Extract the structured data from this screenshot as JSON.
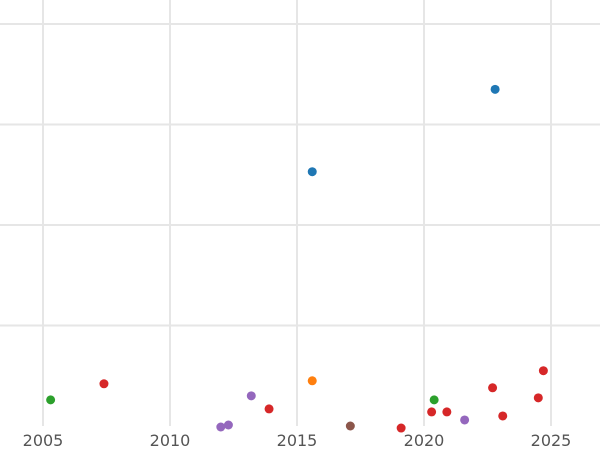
{
  "chart_data": {
    "type": "scatter",
    "title": "",
    "xlabel": "",
    "ylabel": "",
    "grid": true,
    "legend": "none",
    "xlim": [
      2005.0,
      2026.5
    ],
    "ylim": [
      0,
      410
    ],
    "x_ticks": [
      2005,
      2010,
      2015,
      2020,
      2025
    ],
    "x_tick_labels": [
      "2005",
      "2010",
      "2015",
      "2020",
      "2025"
    ],
    "y_gridlines": [
      100,
      200,
      300,
      400
    ],
    "series": [
      {
        "color": "#1f77b4",
        "points": [
          {
            "x": 2015.6,
            "y": 253
          },
          {
            "x": 2022.8,
            "y": 335
          }
        ]
      },
      {
        "color": "#ff7f0e",
        "points": [
          {
            "x": 2015.6,
            "y": 45
          }
        ]
      },
      {
        "color": "#2ca02c",
        "points": [
          {
            "x": 2005.3,
            "y": 26
          },
          {
            "x": 2020.4,
            "y": 26
          }
        ]
      },
      {
        "color": "#d62728",
        "points": [
          {
            "x": 2007.4,
            "y": 42
          },
          {
            "x": 2013.9,
            "y": 17
          },
          {
            "x": 2019.1,
            "y": -2
          },
          {
            "x": 2020.3,
            "y": 14
          },
          {
            "x": 2020.9,
            "y": 14
          },
          {
            "x": 2022.7,
            "y": 38
          },
          {
            "x": 2023.1,
            "y": 10
          },
          {
            "x": 2024.5,
            "y": 28
          },
          {
            "x": 2024.7,
            "y": 55
          }
        ]
      },
      {
        "color": "#9467bd",
        "points": [
          {
            "x": 2012.0,
            "y": -1
          },
          {
            "x": 2012.3,
            "y": 1
          },
          {
            "x": 2013.2,
            "y": 30
          },
          {
            "x": 2021.6,
            "y": 6
          }
        ]
      },
      {
        "color": "#8c564b",
        "points": [
          {
            "x": 2017.1,
            "y": 0
          }
        ]
      }
    ]
  }
}
